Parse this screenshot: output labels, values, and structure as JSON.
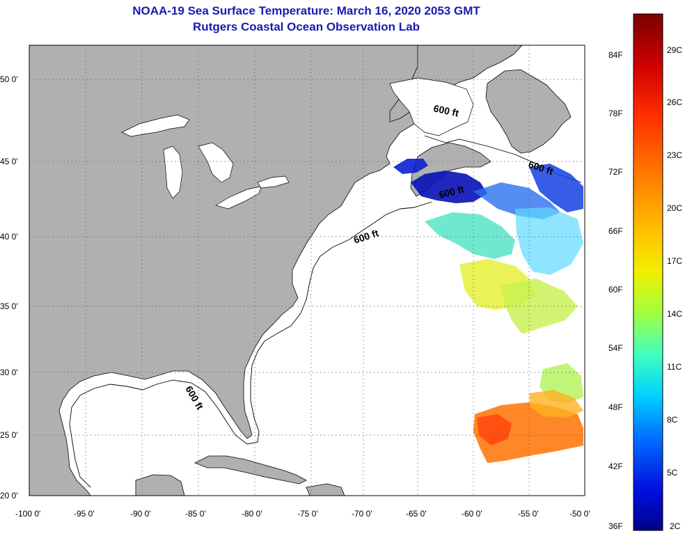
{
  "header": {
    "title": "NOAA-19 Sea Surface Temperature:  March 16, 2020 2053 GMT",
    "subtitle": "Rutgers Coastal Ocean Observation Lab"
  },
  "map": {
    "lat_labels": [
      "50 0'",
      "45 0'",
      "40 0'",
      "35 0'",
      "30 0'",
      "25 0'",
      "20 0'"
    ],
    "lon_labels": [
      "-100 0'",
      "-95 0'",
      "-90 0'",
      "-85 0'",
      "-80 0'",
      "-75 0'",
      "-70 0'",
      "-65 0'",
      "-60 0'",
      "-55 0'",
      "-50 0'"
    ],
    "contour_labels": [
      "600 ft",
      "600 ft",
      "600 ft",
      "600 ft",
      "600 ft"
    ],
    "colors": {
      "land": "#b0b0b0",
      "ocean": "#ffffff",
      "grid": "#555555",
      "title": "#1a1ab0"
    }
  },
  "colorbar": {
    "fahrenheit": [
      "84F",
      "78F",
      "72F",
      "66F",
      "60F",
      "54F",
      "48F",
      "42F",
      "36F"
    ],
    "celsius": [
      "29C",
      "26C",
      "23C",
      "20C",
      "17C",
      "14C",
      "11C",
      "8C",
      "5C",
      "2C"
    ],
    "gradient": [
      "#7a0000",
      "#d00000",
      "#ff3000",
      "#ff8000",
      "#ffc000",
      "#f0f000",
      "#a0ff40",
      "#40ffc0",
      "#00d0ff",
      "#0070ff",
      "#0010e0",
      "#00008a"
    ]
  }
}
